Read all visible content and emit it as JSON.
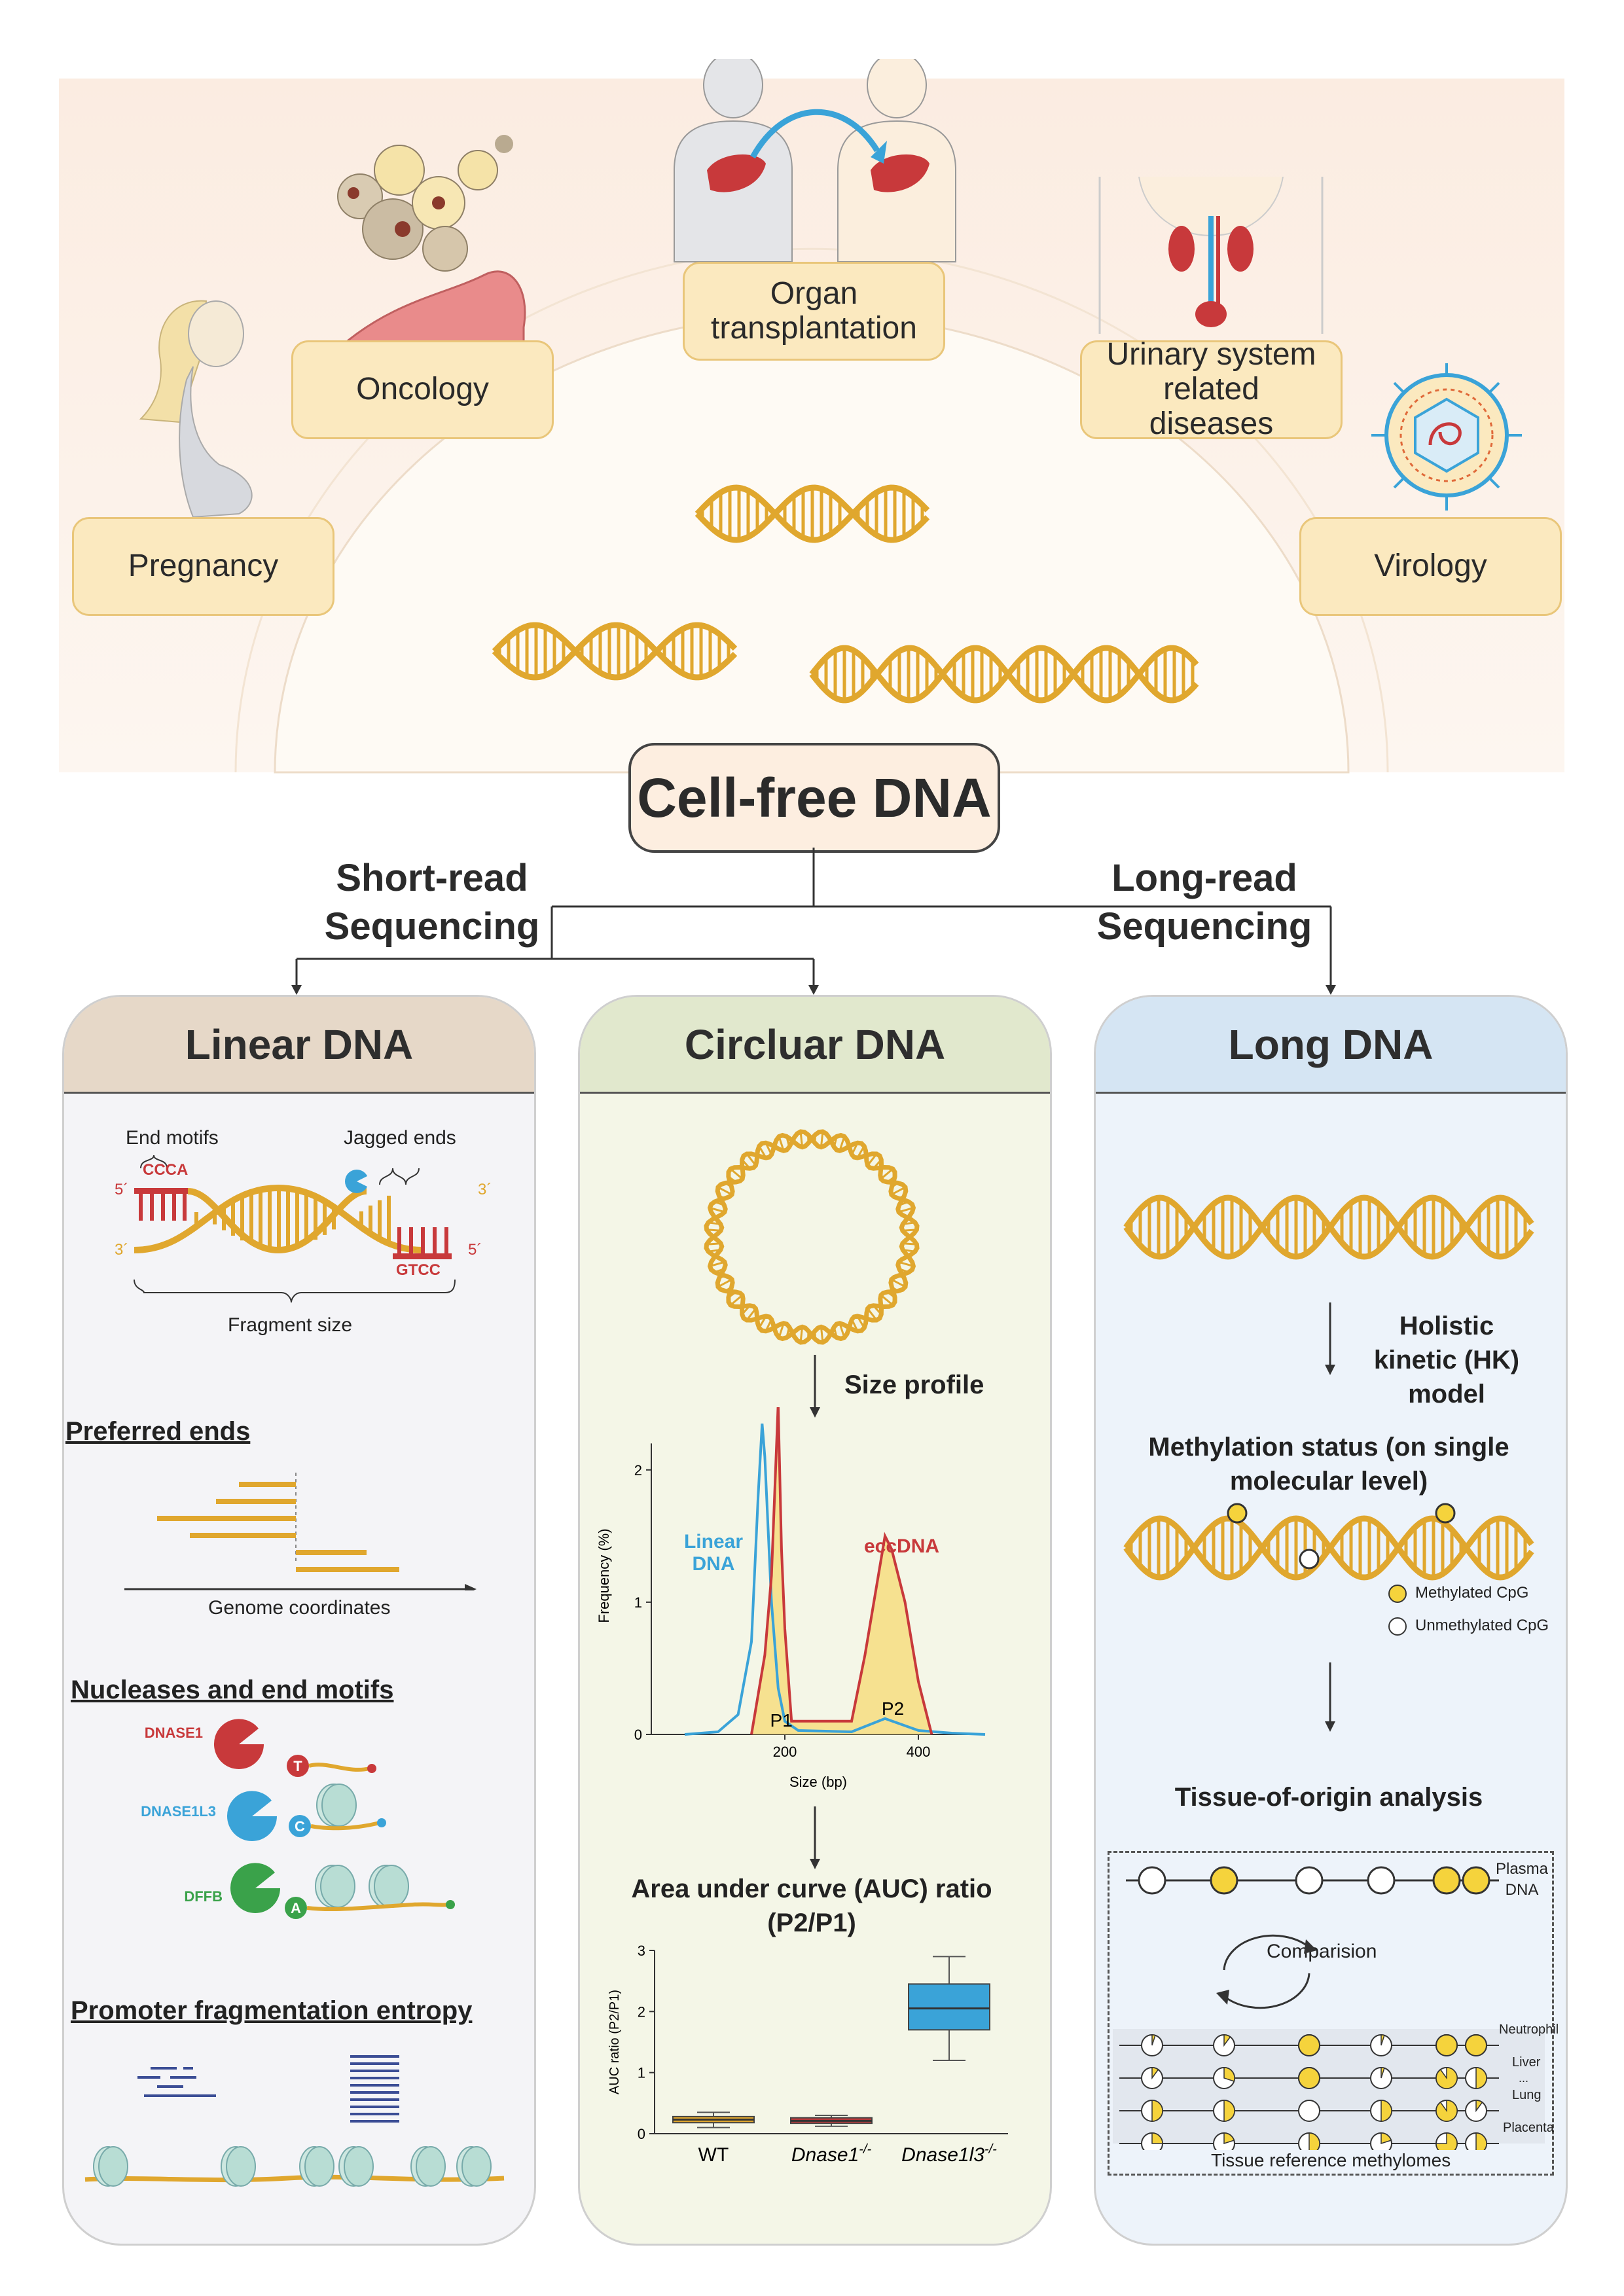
{
  "applications": {
    "pregnancy": "Pregnancy",
    "oncology": "Oncology",
    "organ_transplantation": "Organ transplantation",
    "urinary": "Urinary system related diseases",
    "virology": "Virology"
  },
  "title": "Cell-free DNA",
  "branches": {
    "short_read": "Short-read Sequencing",
    "long_read": "Long-read Sequencing"
  },
  "linear_panel": {
    "header": "Linear DNA",
    "end_motifs": "End motifs",
    "jagged_ends": "Jagged ends",
    "motif_top": "CCCA",
    "motif_bottom": "GTCC",
    "five_prime": "5´",
    "three_prime": "3´",
    "fragment_size": "Fragment size",
    "preferred_ends": "Preferred ends",
    "genome_coordinates": "Genome coordinates",
    "nucleases_title": "Nucleases and end motifs",
    "nucleases": [
      {
        "name": "DNASE1",
        "base": "T",
        "color": "#c8393b"
      },
      {
        "name": "DNASE1L3",
        "base": "C",
        "color": "#3aa3d8"
      },
      {
        "name": "DFFB",
        "base": "A",
        "color": "#3aa24a"
      }
    ],
    "promoter_title": "Promoter fragmentation entropy"
  },
  "circular_panel": {
    "header": "Circluar DNA",
    "size_profile": "Size profile",
    "linear_label": "Linear DNA",
    "ecc_label": "eccDNA",
    "p1": "P1",
    "p2": "P2",
    "auc_title": "Area under curve (AUC) ratio (P2/P1)"
  },
  "long_panel": {
    "header": "Long DNA",
    "hk_model": "Holistic kinetic (HK) model",
    "methylation_status": "Methylation status (on single molecular level)",
    "methylated": "Methylated CpG",
    "unmethylated": "Unmethylated CpG",
    "tissue_origin": "Tissue-of-origin analysis",
    "plasma_dna": "Plasma DNA",
    "comparison": "Comparision",
    "tissues": [
      "Neutrophil",
      "Liver",
      "Lung",
      "Placenta"
    ],
    "ellipsis": "...",
    "reference": "Tissue reference methylomes"
  },
  "colors": {
    "gold": "#e0a72e",
    "red": "#c8393b",
    "blue": "#3aa3d8",
    "green": "#3aa24a",
    "yellow": "#f5d33c"
  },
  "chart_data": [
    {
      "type": "line",
      "xlabel": "Size (bp)",
      "ylabel": "Frequency (%)",
      "xlim": [
        0,
        500
      ],
      "ylim": [
        0,
        2.4
      ],
      "xticks": [
        200,
        400
      ],
      "yticks": [
        0,
        1,
        2
      ],
      "series": [
        {
          "name": "Linear DNA",
          "x": [
            50,
            100,
            130,
            150,
            160,
            166,
            170,
            180,
            190,
            200,
            220,
            300,
            350,
            400,
            450,
            500
          ],
          "values": [
            0,
            0.02,
            0.15,
            0.7,
            1.8,
            2.35,
            2.1,
            1.0,
            0.35,
            0.1,
            0.03,
            0.02,
            0.12,
            0.03,
            0.01,
            0
          ]
        },
        {
          "name": "eccDNA",
          "x": [
            150,
            170,
            180,
            190,
            195,
            200,
            210,
            300,
            320,
            340,
            350,
            360,
            370,
            380,
            390,
            400,
            420
          ],
          "values": [
            0,
            0.6,
            1.2,
            2.5,
            1.4,
            0.8,
            0.1,
            0.1,
            0.6,
            1.2,
            1.5,
            1.4,
            1.2,
            1.0,
            0.7,
            0.4,
            0
          ]
        }
      ]
    },
    {
      "type": "box",
      "ylabel": "AUC ratio (P2/P1)",
      "ylim": [
        0,
        3
      ],
      "yticks": [
        0,
        1,
        2,
        3
      ],
      "categories": [
        "WT",
        "Dnase1-/-",
        "Dnase1l3-/-"
      ],
      "category_labels": [
        {
          "base": "WT",
          "sup": ""
        },
        {
          "base": "Dnase1",
          "sup": "-/-"
        },
        {
          "base": "Dnase1l3",
          "sup": "-/-"
        }
      ],
      "colors": [
        "#e0a72e",
        "#c8393b",
        "#3aa3d8"
      ],
      "boxes": [
        {
          "min": 0.1,
          "q1": 0.18,
          "median": 0.23,
          "q3": 0.28,
          "max": 0.35
        },
        {
          "min": 0.12,
          "q1": 0.17,
          "median": 0.21,
          "q3": 0.26,
          "max": 0.3
        },
        {
          "min": 1.2,
          "q1": 1.7,
          "median": 2.05,
          "q3": 2.45,
          "max": 2.9
        }
      ]
    }
  ]
}
